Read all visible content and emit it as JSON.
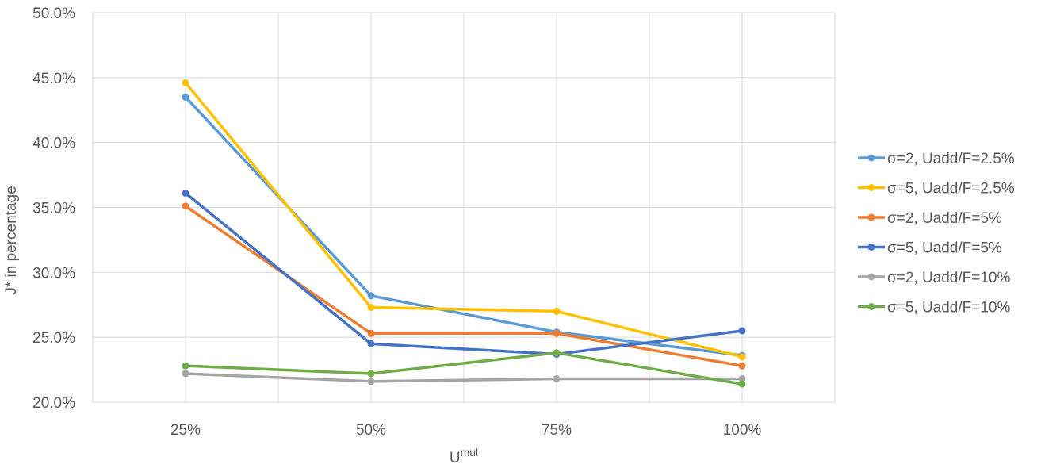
{
  "chart_data": {
    "type": "line",
    "title": "",
    "xlabel": "U",
    "xlabel_sup": "mul",
    "ylabel": "J* in percentage",
    "categories": [
      "25%",
      "50%",
      "75%",
      "100%"
    ],
    "ylim": [
      20,
      50
    ],
    "yticks": [
      20,
      25,
      30,
      35,
      40,
      45,
      50
    ],
    "ytick_labels": [
      "20.0%",
      "25.0%",
      "30.0%",
      "35.0%",
      "40.0%",
      "45.0%",
      "50.0%"
    ],
    "grid": true,
    "legend_position": "right",
    "series": [
      {
        "name": "σ=2, Uadd/F=2.5%",
        "color": "#5B9BD5",
        "values": [
          43.5,
          28.2,
          25.4,
          23.6
        ]
      },
      {
        "name": "σ=5, Uadd/F=2.5%",
        "color": "#FFC000",
        "values": [
          44.6,
          27.3,
          27.0,
          23.5
        ]
      },
      {
        "name": "σ=2, Uadd/F=5%",
        "color": "#ED7D31",
        "values": [
          35.1,
          25.3,
          25.3,
          22.8
        ]
      },
      {
        "name": "σ=5, Uadd/F=5%",
        "color": "#4472C4",
        "values": [
          36.1,
          24.5,
          23.7,
          25.5
        ]
      },
      {
        "name": "σ=2, Uadd/F=10%",
        "color": "#A5A5A5",
        "values": [
          22.2,
          21.6,
          21.8,
          21.8
        ]
      },
      {
        "name": "σ=5, Uadd/F=10%",
        "color": "#70AD47",
        "values": [
          22.8,
          22.2,
          23.8,
          21.4
        ]
      }
    ]
  }
}
